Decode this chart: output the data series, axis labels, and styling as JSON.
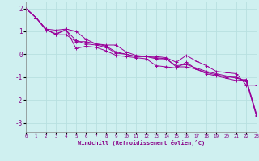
{
  "xlabel": "Windchill (Refroidissement éolien,°C)",
  "ylabel": "",
  "background_color": "#cff0f0",
  "grid_color": "#b8e0e0",
  "line_color": "#990099",
  "xlim": [
    0,
    23
  ],
  "ylim": [
    -3.4,
    2.3
  ],
  "xticks": [
    0,
    1,
    2,
    3,
    4,
    5,
    6,
    7,
    8,
    9,
    10,
    11,
    12,
    13,
    14,
    15,
    16,
    17,
    18,
    19,
    20,
    21,
    22,
    23
  ],
  "yticks": [
    -3,
    -2,
    -1,
    0,
    1,
    2
  ],
  "series": [
    [
      2.0,
      1.6,
      1.1,
      0.85,
      1.1,
      0.25,
      0.35,
      0.3,
      0.15,
      -0.05,
      -0.1,
      -0.15,
      -0.2,
      -0.5,
      -0.55,
      -0.6,
      -0.35,
      -0.65,
      -0.85,
      -0.95,
      -1.05,
      -1.15,
      -1.1,
      -2.65
    ],
    [
      2.0,
      1.6,
      1.1,
      1.05,
      1.1,
      1.0,
      0.65,
      0.45,
      0.4,
      0.4,
      0.1,
      -0.05,
      -0.1,
      -0.1,
      -0.15,
      -0.35,
      -0.05,
      -0.3,
      -0.5,
      -0.75,
      -0.8,
      -0.85,
      -1.35,
      -1.35
    ],
    [
      2.0,
      1.6,
      1.1,
      0.85,
      0.85,
      0.55,
      0.55,
      0.45,
      0.35,
      0.1,
      0.0,
      -0.1,
      -0.1,
      -0.2,
      -0.2,
      -0.55,
      -0.55,
      -0.65,
      -0.8,
      -0.9,
      -1.0,
      -1.0,
      -1.2,
      -2.7
    ],
    [
      2.0,
      1.6,
      1.05,
      0.9,
      1.05,
      0.6,
      0.45,
      0.4,
      0.3,
      0.05,
      0.0,
      -0.1,
      -0.1,
      -0.15,
      -0.2,
      -0.5,
      -0.45,
      -0.6,
      -0.75,
      -0.85,
      -0.95,
      -1.05,
      -1.15,
      -2.6
    ]
  ]
}
